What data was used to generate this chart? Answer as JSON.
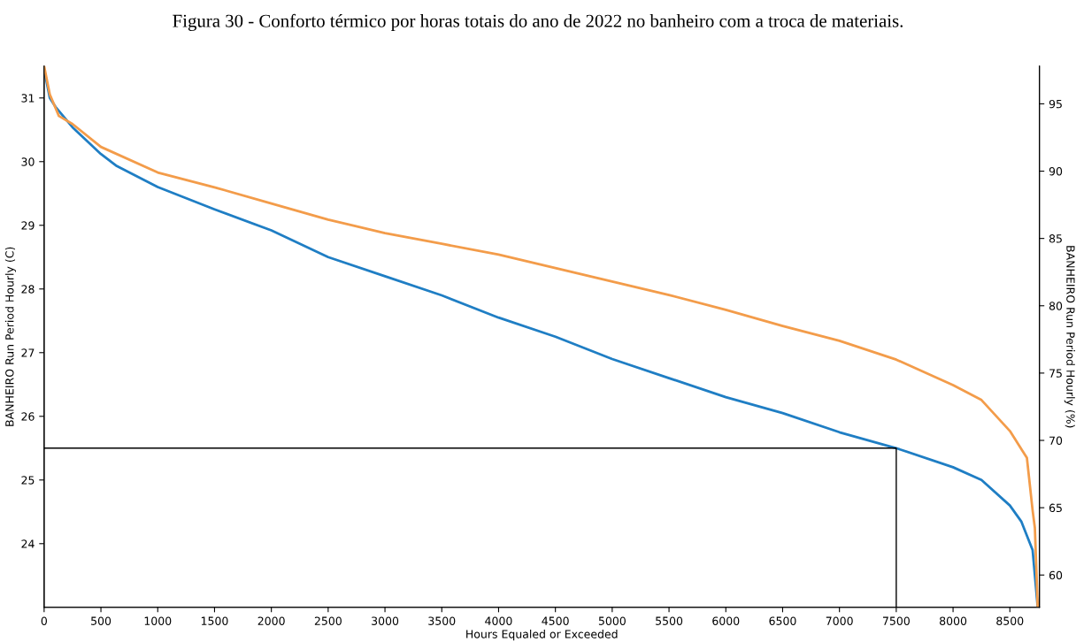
{
  "chart_data": {
    "type": "line",
    "title": "Figura 30 - Conforto térmico por horas totais do ano de 2022 no banheiro com a troca de materiais.",
    "xlabel": "Hours Equaled or Exceeded",
    "ylabel": "BANHEIRO Run Period Hourly (C)",
    "y2label": "BANHEIRO Run Period Hourly (%)",
    "xlim": [
      0,
      8760
    ],
    "xticks": [
      0,
      500,
      1000,
      1500,
      2000,
      2500,
      3000,
      3500,
      4000,
      4500,
      5000,
      5500,
      6000,
      6500,
      7000,
      7500,
      8000,
      8500
    ],
    "ylim": [
      23.0,
      31.5
    ],
    "yticks": [
      24,
      25,
      26,
      27,
      28,
      29,
      30,
      31
    ],
    "y2lim": [
      57.6,
      97.8
    ],
    "y2ticks": [
      60,
      65,
      70,
      75,
      80,
      85,
      90,
      95
    ],
    "grid": false,
    "legend": false,
    "series": [
      {
        "color": "#f39c4a",
        "axis": "y2",
        "x": [
          0,
          50,
          130,
          250,
          500,
          1000,
          1500,
          2000,
          2500,
          3000,
          3500,
          4000,
          4500,
          5000,
          5500,
          6000,
          6500,
          7000,
          7500,
          8000,
          8250,
          8500,
          8650,
          8700,
          8720,
          8745
        ],
        "values": [
          97.8,
          95.7,
          94.1,
          93.5,
          91.8,
          89.9,
          88.8,
          87.6,
          86.4,
          85.4,
          84.6,
          83.8,
          82.8,
          81.8,
          80.8,
          79.7,
          78.5,
          77.4,
          76.0,
          74.1,
          73.0,
          70.7,
          68.7,
          64.8,
          63.5,
          57.6
        ]
      },
      {
        "color": "#1f7ec4",
        "x": [
          0,
          50,
          100,
          250,
          500,
          640,
          1000,
          1500,
          2000,
          2500,
          3000,
          3500,
          4000,
          4500,
          5000,
          5500,
          6000,
          6500,
          7000,
          7500,
          8000,
          8250,
          8500,
          8600,
          8700,
          8730,
          8745
        ],
        "values": [
          31.45,
          31.0,
          30.86,
          30.54,
          30.12,
          29.93,
          29.6,
          29.25,
          28.92,
          28.5,
          28.2,
          27.9,
          27.55,
          27.25,
          26.9,
          26.6,
          26.3,
          26.05,
          25.75,
          25.5,
          25.2,
          25.0,
          24.6,
          24.35,
          23.9,
          23.3,
          23.0
        ]
      },
      {
        "color": "#000000",
        "x": [
          0,
          7500,
          7500
        ],
        "values": [
          25.5,
          25.5,
          23.0
        ]
      }
    ]
  }
}
